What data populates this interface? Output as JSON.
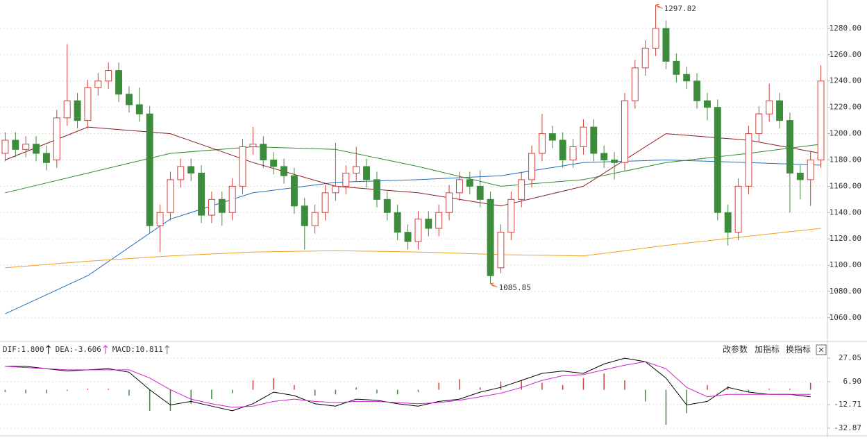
{
  "chart_data": [
    {
      "type": "candlestick",
      "xlim": [
        -0.5,
        79.5
      ],
      "ylim": [
        1042,
        1301.6
      ],
      "yticks": [
        {
          "value": 1060,
          "label": "1060.00"
        },
        {
          "value": 1080,
          "label": "1080.00"
        },
        {
          "value": 1100,
          "label": "1100.00"
        },
        {
          "value": 1120,
          "label": "1120.00"
        },
        {
          "value": 1140,
          "label": "1140.00"
        },
        {
          "value": 1160,
          "label": "1160.00"
        },
        {
          "value": 1180,
          "label": "1180.00"
        },
        {
          "value": 1200,
          "label": "1200.00"
        },
        {
          "value": 1220,
          "label": "1220.00"
        },
        {
          "value": 1240,
          "label": "1240.00"
        },
        {
          "value": 1260,
          "label": "1260.00"
        },
        {
          "value": 1280,
          "label": "1280.00"
        }
      ],
      "grid": true,
      "up_color": "#d0403a",
      "down_color": "#3c8c3c",
      "open": [
        1185,
        1195,
        1188,
        1192,
        1185,
        1180,
        1212,
        1225,
        1210,
        1235,
        1240,
        1248,
        1230,
        1222,
        1215,
        1130,
        1140,
        1165,
        1175,
        1170,
        1138,
        1150,
        1140,
        1160,
        1190,
        1192,
        1180,
        1175,
        1168,
        1145,
        1130,
        1140,
        1155,
        1160,
        1170,
        1175,
        1165,
        1150,
        1140,
        1125,
        1118,
        1135,
        1128,
        1140,
        1155,
        1165,
        1160,
        1150,
        1098,
        1125,
        1150,
        1165,
        1185,
        1200,
        1195,
        1180,
        1190,
        1205,
        1185,
        1180,
        1178,
        1225,
        1250,
        1265,
        1280,
        1255,
        1245,
        1240,
        1225,
        1220,
        1140,
        1125,
        1160,
        1200,
        1215,
        1225,
        1210,
        1170,
        1165,
        1180
      ],
      "high": [
        1201,
        1201,
        1198,
        1198,
        1191,
        1218,
        1268,
        1231,
        1241,
        1246,
        1254,
        1254,
        1236,
        1235,
        1221,
        1146,
        1171,
        1181,
        1181,
        1176,
        1156,
        1156,
        1166,
        1196,
        1205,
        1198,
        1186,
        1181,
        1174,
        1151,
        1146,
        1161,
        1193,
        1176,
        1190,
        1181,
        1171,
        1156,
        1146,
        1131,
        1141,
        1141,
        1146,
        1161,
        1171,
        1171,
        1172,
        1156,
        1131,
        1156,
        1171,
        1191,
        1215,
        1206,
        1201,
        1196,
        1211,
        1211,
        1191,
        1186,
        1231,
        1256,
        1271,
        1297.82,
        1286,
        1261,
        1251,
        1246,
        1231,
        1226,
        1146,
        1166,
        1206,
        1221,
        1238,
        1231,
        1216,
        1176,
        1186,
        1252
      ],
      "low": [
        1179,
        1182,
        1182,
        1179,
        1172,
        1174,
        1206,
        1204,
        1204,
        1229,
        1234,
        1224,
        1216,
        1209,
        1124,
        1110,
        1134,
        1159,
        1164,
        1132,
        1132,
        1130,
        1134,
        1154,
        1184,
        1174,
        1169,
        1162,
        1139,
        1112,
        1124,
        1134,
        1149,
        1154,
        1164,
        1159,
        1144,
        1134,
        1119,
        1112,
        1112,
        1122,
        1122,
        1134,
        1149,
        1154,
        1144,
        1085.85,
        1094,
        1119,
        1144,
        1159,
        1179,
        1189,
        1174,
        1174,
        1184,
        1179,
        1174,
        1165,
        1172,
        1219,
        1244,
        1259,
        1249,
        1239,
        1234,
        1219,
        1210,
        1134,
        1115,
        1119,
        1154,
        1194,
        1209,
        1204,
        1140,
        1150,
        1145,
        1174
      ],
      "close": [
        1195,
        1188,
        1192,
        1185,
        1178,
        1212,
        1225,
        1210,
        1235,
        1240,
        1248,
        1230,
        1222,
        1215,
        1130,
        1140,
        1165,
        1175,
        1170,
        1138,
        1150,
        1140,
        1160,
        1190,
        1192,
        1180,
        1175,
        1168,
        1145,
        1130,
        1140,
        1155,
        1160,
        1170,
        1175,
        1165,
        1150,
        1140,
        1125,
        1118,
        1135,
        1128,
        1140,
        1155,
        1165,
        1160,
        1150,
        1092,
        1125,
        1150,
        1165,
        1185,
        1200,
        1195,
        1180,
        1190,
        1205,
        1185,
        1180,
        1178,
        1225,
        1250,
        1265,
        1280,
        1255,
        1245,
        1240,
        1225,
        1220,
        1140,
        1125,
        1160,
        1200,
        1215,
        1225,
        1210,
        1170,
        1165,
        1180,
        1240
      ],
      "annotations": [
        1297.82,
        1085.85
      ],
      "annotation_color": "#e06020",
      "series": [
        {
          "color": "#1f6fbf",
          "x": [
            0,
            8,
            16,
            24,
            32,
            40,
            48,
            56,
            64,
            72,
            79
          ],
          "values": [
            1063,
            1092,
            1135,
            1155,
            1163,
            1165,
            1168,
            1178,
            1180,
            1178,
            1176
          ]
        },
        {
          "color": "#f0a020",
          "x": [
            0,
            8,
            16,
            24,
            32,
            40,
            48,
            56,
            64,
            72,
            79
          ],
          "values": [
            1098,
            1103,
            1107,
            1110,
            1111,
            1110,
            1108,
            1107,
            1115,
            1122,
            1128
          ]
        },
        {
          "color": "#2e8b2e",
          "x": [
            0,
            8,
            16,
            24,
            32,
            40,
            48,
            56,
            64,
            72,
            79
          ],
          "values": [
            1155,
            1170,
            1185,
            1190,
            1188,
            1175,
            1160,
            1165,
            1178,
            1185,
            1192
          ]
        },
        {
          "color": "#8b1a1a",
          "x": [
            0,
            8,
            16,
            24,
            32,
            40,
            48,
            56,
            64,
            72,
            79
          ],
          "values": [
            1180,
            1205,
            1200,
            1178,
            1160,
            1155,
            1145,
            1160,
            1200,
            1195,
            1185
          ]
        }
      ]
    },
    {
      "type": "macd",
      "xlim": [
        -0.5,
        79.5
      ],
      "ylim": [
        -39.4,
        40.1
      ],
      "yticks": [
        27.05,
        {
          "value": 6.9,
          "label": "6.90"
        },
        -12.71,
        -32.87
      ],
      "grid": true,
      "legend": [
        "DIF:1.800",
        "DEA:-3.606",
        "MACD:10.811"
      ],
      "legend_colors": [
        "#000000",
        "#d020d0",
        "#666666"
      ],
      "up_color": "#d0403a",
      "down_color": "#3c8c3c",
      "x": [
        0,
        2,
        4,
        6,
        8,
        10,
        12,
        14,
        16,
        18,
        20,
        22,
        24,
        26,
        28,
        30,
        32,
        34,
        36,
        38,
        40,
        42,
        44,
        46,
        48,
        50,
        52,
        54,
        56,
        58,
        60,
        62,
        64,
        66,
        68,
        70,
        72,
        74,
        76,
        78
      ],
      "series": [
        {
          "color": "#000000",
          "values": [
            20,
            20,
            18,
            16,
            17,
            18,
            15,
            0,
            -13,
            -10,
            -14,
            -18,
            -12,
            -2,
            -5,
            -12,
            -14,
            -8,
            -9,
            -12,
            -14,
            -10,
            -8,
            -2,
            2,
            8,
            14,
            16,
            14,
            22,
            27,
            24,
            10,
            -13,
            -10,
            2,
            -2,
            -4,
            -4,
            -6
          ]
        },
        {
          "color": "#d020d0",
          "values": [
            20,
            19,
            18,
            17,
            17,
            17,
            17,
            10,
            0,
            -8,
            -12,
            -15,
            -14,
            -10,
            -8,
            -10,
            -11,
            -10,
            -10,
            -11,
            -12,
            -11,
            -9,
            -6,
            -3,
            2,
            8,
            12,
            13,
            17,
            21,
            24,
            18,
            2,
            -6,
            -4,
            -4,
            -4,
            -4,
            -4
          ]
        }
      ],
      "histogram": [
        -2,
        -3,
        -3,
        -1,
        1,
        1,
        -5,
        -18,
        -18,
        -12,
        -8,
        -3,
        8,
        10,
        4,
        -5,
        -4,
        2,
        -3,
        -4,
        -2,
        6,
        9,
        2,
        7,
        8,
        6,
        4,
        10,
        14,
        8,
        -10,
        -30,
        -20,
        4,
        3,
        -2,
        1,
        1,
        6
      ]
    },
    {
      "type": "toolbar",
      "buttons": [
        "改参数",
        "加指标",
        "换指标"
      ]
    }
  ]
}
